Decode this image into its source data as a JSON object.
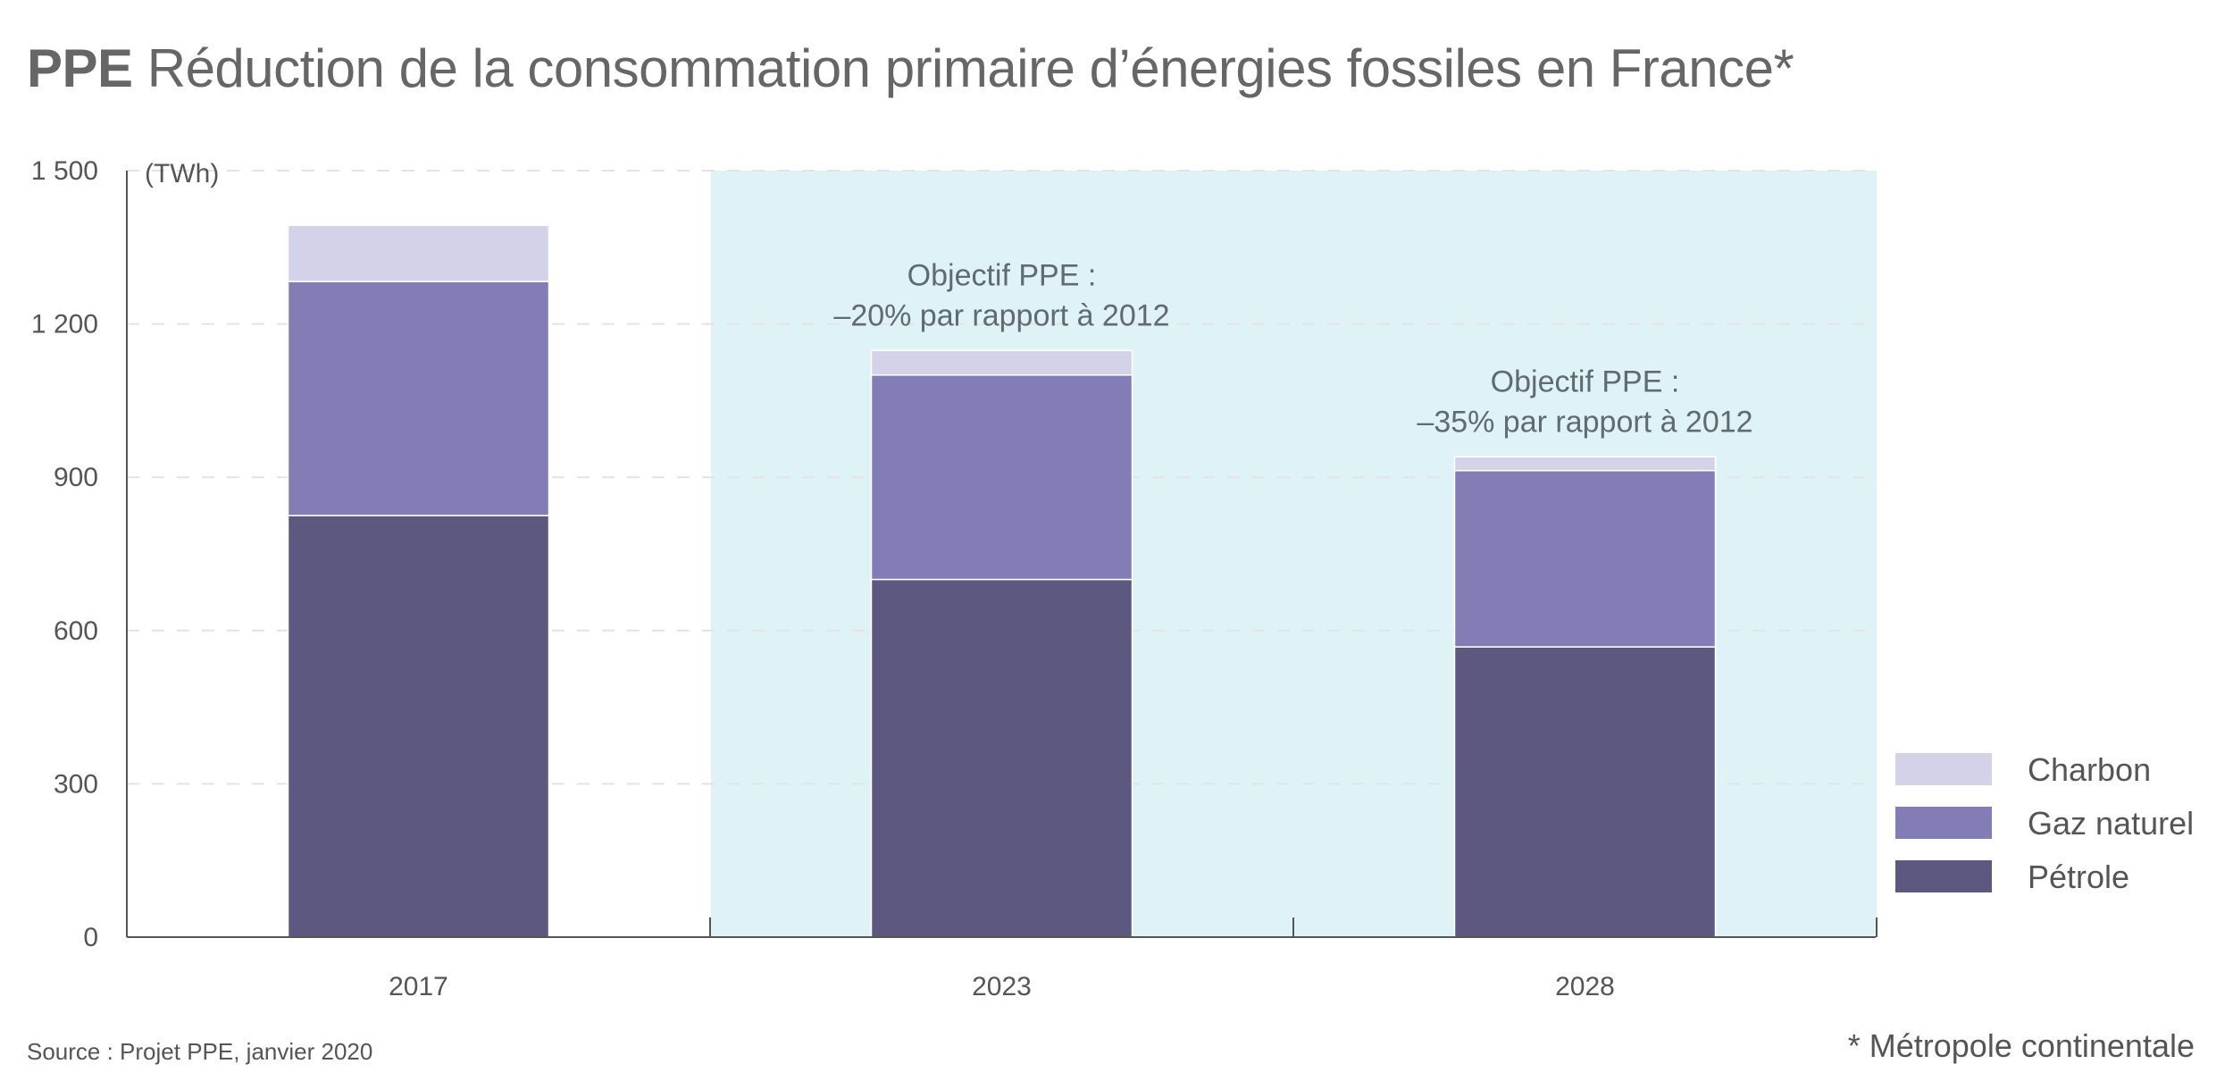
{
  "title": {
    "bold": "PPE",
    "rest": "Réduction de la consommation primaire d’énergies fossiles en France*"
  },
  "source": "Source : Projet PPE, janvier 2020",
  "note": "* Métropole continentale",
  "colors": {
    "charbon": "#d3d2e8",
    "gaz": "#837db5",
    "petrole": "#5c587f",
    "highlight": "#dff2f5",
    "axis": "#555555",
    "grid": "#e3e3e3",
    "text": "#555555"
  },
  "chart_data": {
    "type": "bar",
    "stacked": true,
    "title": "PPE Réduction de la consommation primaire d’énergies fossiles en France*",
    "ylabel": "(TWh)",
    "ylim": [
      0,
      1500
    ],
    "yticks": [
      0,
      300,
      600,
      900,
      1200,
      1500
    ],
    "ytick_labels": [
      "0",
      "300",
      "600",
      "900",
      "1 200",
      "1 500"
    ],
    "categories": [
      "2017",
      "2023",
      "2028"
    ],
    "series": [
      {
        "name": "Pétrole",
        "key": "petrole",
        "values": [
          825,
          700,
          568
        ]
      },
      {
        "name": "Gaz naturel",
        "key": "gaz",
        "values": [
          458,
          400,
          345
        ]
      },
      {
        "name": "Charbon",
        "key": "charbon",
        "values": [
          110,
          48,
          27
        ]
      }
    ],
    "legend_order": [
      "Charbon",
      "Gaz naturel",
      "Pétrole"
    ],
    "legend_position": "bottom-right",
    "highlight_categories": [
      "2023",
      "2028"
    ],
    "annotations": [
      {
        "category": "2023",
        "lines": [
          "Objectif PPE :",
          "–20% par rapport à 2012"
        ]
      },
      {
        "category": "2028",
        "lines": [
          "Objectif PPE :",
          "–35% par rapport à 2012"
        ]
      }
    ]
  }
}
